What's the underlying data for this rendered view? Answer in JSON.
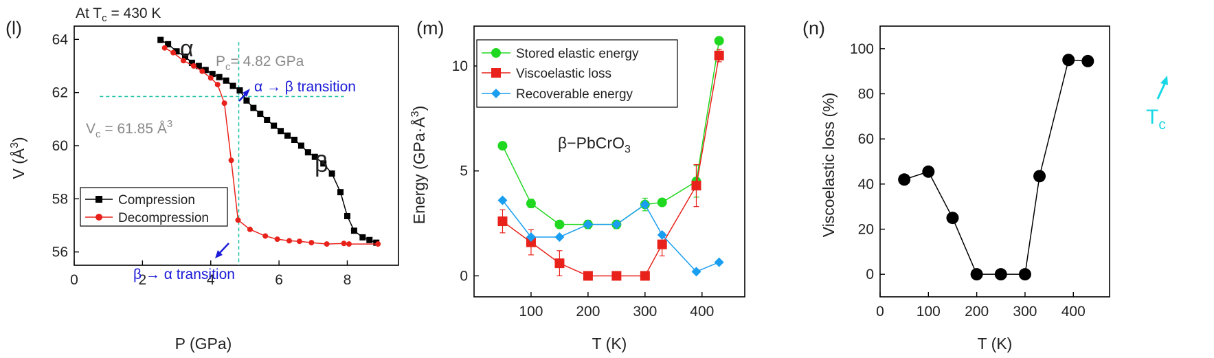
{
  "panels": [
    {
      "id": "l",
      "label": "(l)",
      "header": "At T",
      "header_sub": "c",
      "header_rest": " = 430 K",
      "legend": [
        {
          "label": "Compression",
          "color": "#000000",
          "marker": "square"
        },
        {
          "label": "Decompression",
          "color": "#e8221a",
          "marker": "circle"
        }
      ],
      "annotations": {
        "alpha": "α",
        "beta": "β",
        "pc_text": "P",
        "pc_sub": "c",
        "pc_rest": "= 4.82 GPa",
        "vc_text": "V",
        "vc_sub": "c",
        "vc_rest": " = 61.85 Å",
        "vc_sup": "3",
        "ab_transition": "α → β transition",
        "ba_transition": "β → α transition",
        "gray_color": "#8a8a8a",
        "transition_color": "#1a1ad8",
        "guide_color": "#22c4a6"
      },
      "ylabel_text": "V (Å",
      "ylabel_sup": "3",
      "ylabel_close": ")"
    },
    {
      "id": "m",
      "label": "(m)",
      "legend": [
        {
          "label": "Stored elastic energy",
          "color": "#1fd81f",
          "marker": "circle"
        },
        {
          "label": "Viscoelastic loss",
          "color": "#e8221a",
          "marker": "square"
        },
        {
          "label": "Recoverable energy",
          "color": "#1a9ef0",
          "marker": "diamond"
        }
      ],
      "annotation": "β−PbCrO",
      "annotation_sub": "3",
      "ylabel_text": "Energy (GPa·Å",
      "ylabel_sup": "3",
      "ylabel_close": ")"
    },
    {
      "id": "n",
      "label": "(n)",
      "annotation": "T",
      "annotation_sub": "c",
      "annotation_color": "#18d8e6"
    }
  ],
  "chart_data": [
    {
      "type": "line",
      "xlabel": "P (GPa)",
      "ylabel": "V (Å3)",
      "xlim": [
        0,
        9.5
      ],
      "ylim": [
        55.5,
        64.5
      ],
      "xticks": [
        0,
        2,
        4,
        6,
        8
      ],
      "yticks": [
        56,
        58,
        60,
        62,
        64
      ],
      "guides": {
        "pc": 4.82,
        "vc": 61.85
      },
      "series": [
        {
          "name": "Compression",
          "color": "#000000",
          "marker": "square",
          "x": [
            2.53,
            2.75,
            3.0,
            3.25,
            3.45,
            3.65,
            3.85,
            4.05,
            4.25,
            4.45,
            4.65,
            4.85,
            5.05,
            5.25,
            5.45,
            5.65,
            5.85,
            6.05,
            6.25,
            6.45,
            6.65,
            6.85,
            7.05,
            7.3,
            7.55,
            7.8,
            8.0,
            8.2,
            8.45,
            8.65,
            8.85
          ],
          "y": [
            63.98,
            63.82,
            63.55,
            63.35,
            63.12,
            63.0,
            62.85,
            62.7,
            62.58,
            62.45,
            62.25,
            62.08,
            61.7,
            61.42,
            61.2,
            60.97,
            60.75,
            60.55,
            60.38,
            60.22,
            60.0,
            59.75,
            59.58,
            59.33,
            58.95,
            58.25,
            57.35,
            56.8,
            56.55,
            56.45,
            56.35
          ]
        },
        {
          "name": "Decompression",
          "color": "#e8221a",
          "marker": "circle",
          "x": [
            2.65,
            2.9,
            3.2,
            3.5,
            3.75,
            4.0,
            4.2,
            4.4,
            4.6,
            4.8,
            5.15,
            5.6,
            5.95,
            6.3,
            6.6,
            6.95,
            7.4,
            7.9,
            8.05,
            8.9
          ],
          "y": [
            63.68,
            63.5,
            63.2,
            63.0,
            62.8,
            62.55,
            62.3,
            61.6,
            59.45,
            57.2,
            56.85,
            56.6,
            56.48,
            56.42,
            56.4,
            56.35,
            56.3,
            56.32,
            56.3,
            56.3
          ]
        }
      ]
    },
    {
      "type": "line",
      "xlabel": "T (K)",
      "ylabel": "Energy (GPa·Å3)",
      "xlim": [
        0,
        475
      ],
      "ylim": [
        -1,
        11.9
      ],
      "xticks": [
        100,
        200,
        300,
        400
      ],
      "yticks": [
        0,
        5,
        10
      ],
      "series": [
        {
          "name": "Stored elastic energy",
          "color": "#1fd81f",
          "marker": "circle",
          "x": [
            50,
            100,
            150,
            200,
            250,
            300,
            330,
            390,
            430
          ],
          "y": [
            6.2,
            3.45,
            2.45,
            2.45,
            2.45,
            3.4,
            3.5,
            4.5,
            11.2
          ],
          "err": [
            0.15,
            0.2,
            0.1,
            0.2,
            0.2,
            0.3,
            0.15,
            0.75,
            0.15
          ]
        },
        {
          "name": "Viscoelastic loss",
          "color": "#e8221a",
          "marker": "square",
          "x": [
            50,
            100,
            150,
            200,
            250,
            300,
            330,
            390,
            430
          ],
          "y": [
            2.6,
            1.6,
            0.6,
            0.0,
            0.0,
            0.0,
            1.5,
            4.3,
            10.5
          ],
          "err": [
            0.55,
            0.6,
            0.6,
            0.0,
            0.0,
            0.0,
            0.55,
            1.0,
            0.3
          ]
        },
        {
          "name": "Recoverable energy",
          "color": "#1a9ef0",
          "marker": "diamond",
          "x": [
            50,
            100,
            150,
            200,
            250,
            300,
            330,
            390,
            430
          ],
          "y": [
            3.6,
            1.85,
            1.85,
            2.45,
            2.45,
            3.4,
            1.95,
            0.2,
            0.65
          ],
          "err": [
            0,
            0,
            0,
            0,
            0,
            0,
            0,
            0,
            0
          ]
        }
      ]
    },
    {
      "type": "line",
      "xlabel": "T (K)",
      "ylabel": "Viscoelastic loss  (%)",
      "xlim": [
        0,
        475
      ],
      "ylim": [
        -10,
        110
      ],
      "xticks": [
        0,
        100,
        200,
        300,
        400
      ],
      "yticks": [
        0,
        20,
        40,
        60,
        80,
        100
      ],
      "series": [
        {
          "color": "#000000",
          "marker": "circle",
          "x": [
            50,
            100,
            150,
            200,
            250,
            300,
            330,
            390,
            430
          ],
          "y": [
            42.0,
            45.5,
            25.0,
            0.0,
            0.0,
            0.0,
            43.5,
            95.0,
            94.5
          ]
        }
      ]
    }
  ]
}
